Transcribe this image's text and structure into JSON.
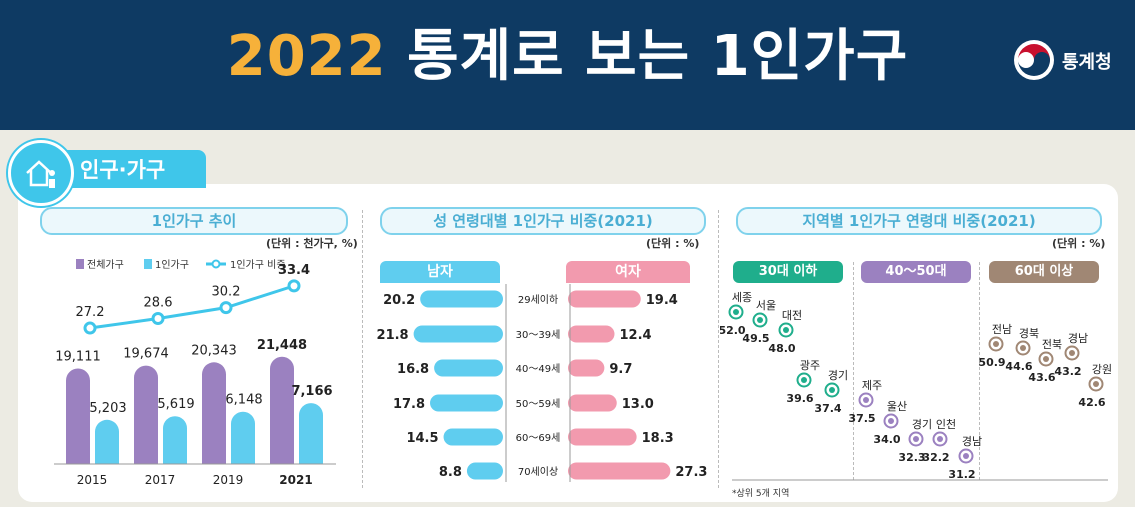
{
  "header": {
    "title_year": "2022",
    "title_rest": "통계로 보는 1인가구",
    "logo_text": "통계청",
    "logo_icon": "taegeuk-icon"
  },
  "section_tab": {
    "label": "인구·가구",
    "icon": "house-person-icon"
  },
  "colors": {
    "navy": "#0e3a63",
    "gold": "#f6b13a",
    "cyan": "#3fc6ea",
    "purple": "#9b81c0",
    "light_blue": "#5fcdef",
    "pink": "#f29aae",
    "green": "#1fae8c",
    "brown": "#a08774"
  },
  "chart_data": [
    {
      "type": "bar",
      "title": "1인가구 추이",
      "unit": "(단위 : 천가구, %)",
      "categories": [
        "2015",
        "2017",
        "2019",
        "2021"
      ],
      "series": [
        {
          "name": "전체가구",
          "values": [
            19111,
            19674,
            20343,
            21448
          ],
          "labels": [
            "19,111",
            "19,674",
            "20,343",
            "21,448"
          ]
        },
        {
          "name": "1인가구",
          "values": [
            5203,
            5619,
            6148,
            7166
          ],
          "labels": [
            "5,203",
            "5,619",
            "6,148",
            "7,166"
          ]
        },
        {
          "name": "1인가구 비중",
          "type": "line",
          "values": [
            27.2,
            28.6,
            30.2,
            33.4
          ],
          "labels": [
            "27.2",
            "28.6",
            "30.2",
            "33.4"
          ]
        }
      ]
    },
    {
      "type": "bar",
      "title": "성 연령대별 1인가구 비중(2021)",
      "unit": "(단위 : %)",
      "categories": [
        "29세이하",
        "30～39세",
        "40～49세",
        "50～59세",
        "60～69세",
        "70세이상"
      ],
      "series": [
        {
          "name": "남자",
          "values": [
            20.2,
            21.8,
            16.8,
            17.8,
            14.5,
            8.8
          ],
          "labels": [
            "20.2",
            "21.8",
            "16.8",
            "17.8",
            "14.5",
            "8.8"
          ]
        },
        {
          "name": "여자",
          "values": [
            19.4,
            12.4,
            9.7,
            13.0,
            18.3,
            27.3
          ],
          "labels": [
            "19.4",
            "12.4",
            "9.7",
            "13.0",
            "18.3",
            "27.3"
          ]
        }
      ]
    },
    {
      "type": "scatter",
      "title": "지역별 1인가구 연령대 비중(2021)",
      "unit": "(단위 : %)",
      "footnote": "*상위 5개 지역",
      "groups": [
        {
          "name": "30대 이하",
          "points": [
            {
              "region": "세종",
              "value": 52.0,
              "label": "52.0"
            },
            {
              "region": "서울",
              "value": 49.5,
              "label": "49.5"
            },
            {
              "region": "대전",
              "value": 48.0,
              "label": "48.0"
            },
            {
              "region": "광주",
              "value": 39.6,
              "label": "39.6"
            },
            {
              "region": "경기",
              "value": 37.4,
              "label": "37.4"
            }
          ]
        },
        {
          "name": "40～50대",
          "points": [
            {
              "region": "제주",
              "value": 37.5,
              "label": "37.5"
            },
            {
              "region": "울산",
              "value": 34.0,
              "label": "34.0"
            },
            {
              "region": "경기",
              "value": 32.3,
              "label": "32.3"
            },
            {
              "region": "인천",
              "value": 32.2,
              "label": "32.2"
            },
            {
              "region": "경남",
              "value": 31.2,
              "label": "31.2"
            }
          ]
        },
        {
          "name": "60대 이상",
          "points": [
            {
              "region": "전남",
              "value": 50.9,
              "label": "50.9"
            },
            {
              "region": "경북",
              "value": 44.6,
              "label": "44.6"
            },
            {
              "region": "전북",
              "value": 43.6,
              "label": "43.6"
            },
            {
              "region": "경남",
              "value": 43.2,
              "label": "43.2"
            },
            {
              "region": "강원",
              "value": 42.6,
              "label": "42.6"
            }
          ]
        }
      ]
    }
  ]
}
